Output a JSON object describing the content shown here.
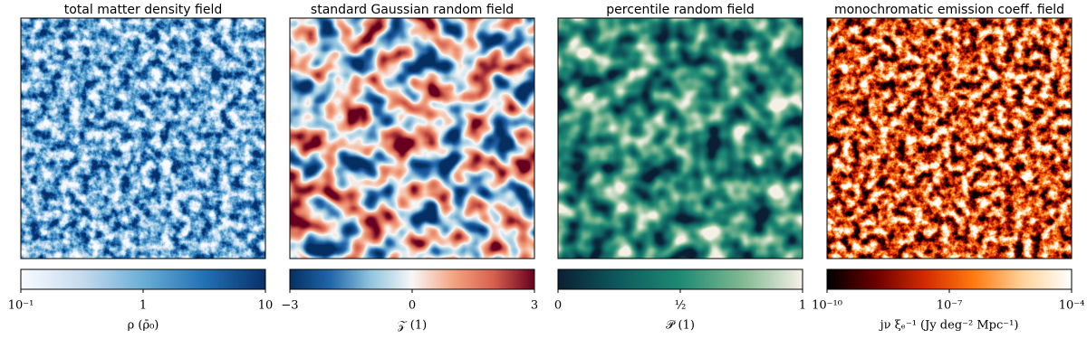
{
  "chart_data": [
    {
      "type": "field",
      "title": "total matter density field",
      "colorbar_label": "ρ (ρ̄₀)",
      "log": true,
      "xlim": [
        0.1,
        10
      ],
      "xticks": [
        {
          "value": 0.1,
          "label": "10⁻¹"
        },
        1,
        10
      ],
      "colors": [
        "#f7fbff",
        "#c6dbef",
        "#6baed6",
        "#2171b5",
        "#08306b"
      ]
    },
    {
      "type": "field",
      "title": "standard Gaussian random field",
      "colorbar_label": "𝒵 (1)",
      "log": false,
      "xlim": [
        -3,
        3
      ],
      "xticks": [
        {
          "value": -3,
          "label": "−3"
        },
        0,
        3
      ],
      "colors": [
        "#053061",
        "#2166ac",
        "#92c5de",
        "#f7f7f7",
        "#f4a582",
        "#d6604d",
        "#67001f"
      ]
    },
    {
      "type": "field",
      "title": "percentile random field",
      "colorbar_label": "𝒫 (1)",
      "log": false,
      "xlim": [
        0,
        1
      ],
      "xticks": [
        0,
        {
          "value": 0.5,
          "label": "½"
        },
        1
      ],
      "colors": [
        "#0b1f33",
        "#0e5a5e",
        "#1e8a74",
        "#7fb891",
        "#f5f1e6"
      ]
    },
    {
      "type": "field",
      "title": "monochromatic emission coeff. field",
      "colorbar_label": "jν ξₑ⁻¹ (Jy deg⁻² Mpc⁻¹)",
      "log": true,
      "xlim": [
        1e-10,
        0.0001
      ],
      "xticks": [
        {
          "value": 1e-10,
          "label": "10⁻¹⁰"
        },
        {
          "value": 1e-07,
          "label": "10⁻⁷"
        },
        {
          "value": 0.0001,
          "label": "10⁻⁴"
        }
      ],
      "colors": [
        "#000000",
        "#6b0000",
        "#d42a00",
        "#ff7a10",
        "#ffd29a",
        "#ffffff"
      ]
    }
  ]
}
